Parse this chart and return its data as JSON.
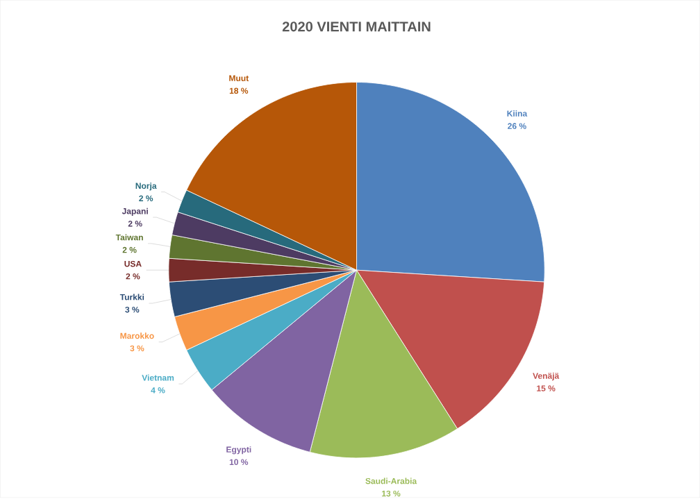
{
  "chart_data": {
    "type": "pie",
    "title": "2020 VIENTI MAITTAIN",
    "categories": [
      "Kiina",
      "Venäjä",
      "Saudi-Arabia",
      "Egypti",
      "Vietnam",
      "Marokko",
      "Turkki",
      "USA",
      "Taiwan",
      "Japani",
      "Norja",
      "Muut"
    ],
    "values": [
      26,
      15,
      13,
      10,
      4,
      3,
      3,
      2,
      2,
      2,
      2,
      18
    ],
    "value_labels": [
      "26 %",
      "15 %",
      "13 %",
      "10 %",
      "4 %",
      "3 %",
      "3 %",
      "2 %",
      "2 %",
      "2 %",
      "2 %",
      "18 %"
    ],
    "colors": [
      "#4f81bd",
      "#c0504d",
      "#9bbb59",
      "#8064a2",
      "#4bacc6",
      "#f79646",
      "#2c4d75",
      "#772c2a",
      "#5f7530",
      "#4d3b62",
      "#276a7c",
      "#b65708"
    ]
  }
}
